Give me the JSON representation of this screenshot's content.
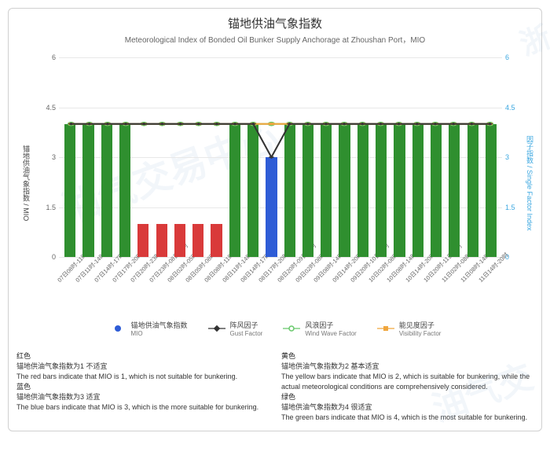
{
  "title_cn": "锚地供油气象指数",
  "subtitle_en": "Meteorological Index of Bonded Oil Bunker Supply Anchorage at Zhoushan Port，MIO",
  "y_left_label": "锚地供油气象指数 / MIO",
  "y_right_label": "因子指数 / Single Factor Index",
  "chart": {
    "type": "bar+line",
    "ylim": [
      0,
      6
    ],
    "ytick_step": 1.5,
    "yticks": [
      "0",
      "1.5",
      "3",
      "4.5",
      "6"
    ],
    "yticks_right": [
      "0",
      "1.5",
      "3",
      "4.5",
      "6"
    ],
    "grid_color": "#e8e8e8",
    "background_color": "#ffffff",
    "categories": [
      "07日08时-11时",
      "07日11时-14时",
      "07日14时-17时",
      "07日17时-20时",
      "07日20时-23时",
      "07日23时-08日02时",
      "08日02时-05时",
      "08日05时-08时",
      "08日08时-11时",
      "08日11时-14时",
      "08日14时-17时",
      "08日17时-20时",
      "08日20时-09日02时",
      "09日02时-08时",
      "09日08时-14时",
      "09日14时-20时",
      "09日20时-10日02时",
      "10日02时-08时",
      "10日08时-14时",
      "10日14时-20时",
      "10日20时-11日02时",
      "11日02时-08时",
      "11日08时-14时",
      "11日14时-20时"
    ],
    "mio_values": [
      4,
      4,
      4,
      4,
      1,
      1,
      1,
      1,
      1,
      4,
      4,
      3,
      4,
      4,
      4,
      4,
      4,
      4,
      4,
      4,
      4,
      4,
      4,
      4
    ],
    "mio_color_map": {
      "1": "#d93a3a",
      "2": "#f2c037",
      "3": "#2e5cd6",
      "4": "#2f8f2f"
    },
    "series_lines": {
      "gust": {
        "values": [
          4,
          4,
          4,
          4,
          4,
          4,
          4,
          4,
          4,
          4,
          4,
          3,
          4,
          4,
          4,
          4,
          4,
          4,
          4,
          4,
          4,
          4,
          4,
          4
        ],
        "color": "#333333",
        "marker": "diamond",
        "width": 1.2
      },
      "windwave": {
        "values": [
          4,
          4,
          4,
          4,
          4,
          4,
          4,
          4,
          4,
          4,
          4,
          4,
          4,
          4,
          4,
          4,
          4,
          4,
          4,
          4,
          4,
          4,
          4,
          4
        ],
        "color": "#67c86a",
        "marker": "circle",
        "width": 1.2
      },
      "visibility": {
        "values": [
          4,
          4,
          4,
          4,
          4,
          4,
          4,
          4,
          4,
          4,
          4,
          4,
          4,
          4,
          4,
          4,
          4,
          4,
          4,
          4,
          4,
          4,
          4,
          4
        ],
        "color": "#f0a63e",
        "marker": "square",
        "width": 1.2
      }
    }
  },
  "legend": {
    "mio": {
      "cn": "锚地供油气象指数",
      "en": "MIO",
      "color": "#2e5cd6"
    },
    "gust": {
      "cn": "阵风因子",
      "en": "Gust Factor",
      "color": "#333333"
    },
    "windwave": {
      "cn": "风浪因子",
      "en": "Wind Wave Factor",
      "color": "#67c86a"
    },
    "visibility": {
      "cn": "能见度因子",
      "en": "Visibility Factor",
      "color": "#f0a63e"
    }
  },
  "notes": {
    "red": {
      "hd": "红色",
      "cn": "锚地供油气象指数为1 不适宜",
      "en": "The red bars indicate that MIO is 1, which is not suitable for bunkering."
    },
    "yellow": {
      "hd": "黄色",
      "cn": "锚地供油气象指数为2 基本适宜",
      "en": "The yellow bars indicate that MIO is 2, which is suitable for bunkering, while the actual meteorological conditions are comprehensively considered."
    },
    "blue": {
      "hd": "蓝色",
      "cn": "锚地供油气象指数为3 适宜",
      "en": "The blue bars indicate that MIO is 3, which is the more suitable for bunkering."
    },
    "green": {
      "hd": "绿色",
      "cn": "锚地供油气象指数为4 很适宜",
      "en": "The green bars indicate that MIO is 4, which is the most suitable for bunkering."
    }
  }
}
